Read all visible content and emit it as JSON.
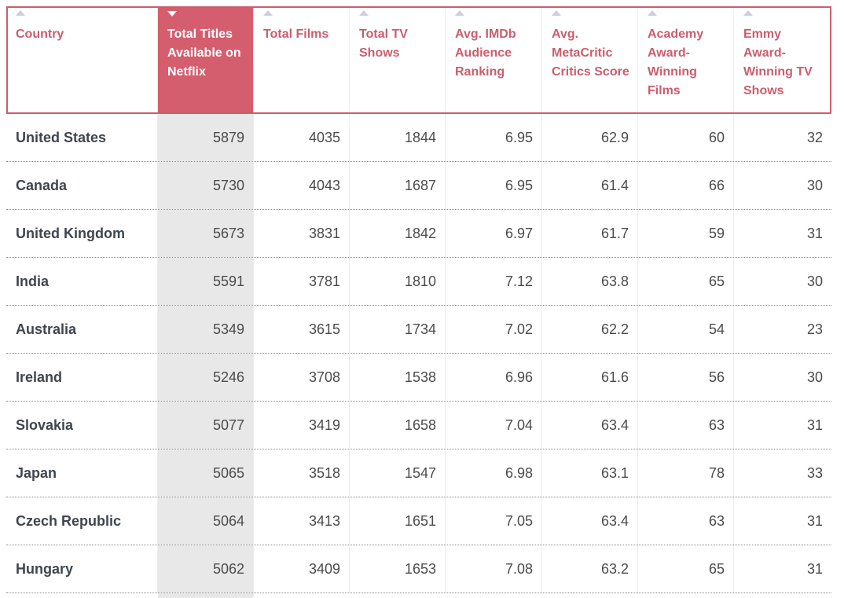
{
  "table": {
    "sorted_column": "Total Titles Available on Netflix",
    "sort_direction": "descending",
    "accent_color": "#cc5d6d",
    "headers": [
      "Country",
      "Total Titles Available on Netflix",
      "Total Films",
      "Total TV Shows",
      "Avg. IMDb Audience Ranking",
      "Avg. MetaCritic Critics Score",
      "Academy Award-Winning Films",
      "Emmy Award-Winning TV Shows"
    ],
    "rows": [
      [
        "United States",
        "5879",
        "4035",
        "1844",
        "6.95",
        "62.9",
        "60",
        "32"
      ],
      [
        "Canada",
        "5730",
        "4043",
        "1687",
        "6.95",
        "61.4",
        "66",
        "30"
      ],
      [
        "United Kingdom",
        "5673",
        "3831",
        "1842",
        "6.97",
        "61.7",
        "59",
        "31"
      ],
      [
        "India",
        "5591",
        "3781",
        "1810",
        "7.12",
        "63.8",
        "65",
        "30"
      ],
      [
        "Australia",
        "5349",
        "3615",
        "1734",
        "7.02",
        "62.2",
        "54",
        "23"
      ],
      [
        "Ireland",
        "5246",
        "3708",
        "1538",
        "6.96",
        "61.6",
        "56",
        "30"
      ],
      [
        "Slovakia",
        "5077",
        "3419",
        "1658",
        "7.04",
        "63.4",
        "63",
        "31"
      ],
      [
        "Japan",
        "5065",
        "3518",
        "1547",
        "6.98",
        "63.1",
        "78",
        "33"
      ],
      [
        "Czech Republic",
        "5064",
        "3413",
        "1651",
        "7.05",
        "63.4",
        "63",
        "31"
      ],
      [
        "Hungary",
        "5062",
        "3409",
        "1653",
        "7.08",
        "63.2",
        "65",
        "31"
      ]
    ]
  }
}
